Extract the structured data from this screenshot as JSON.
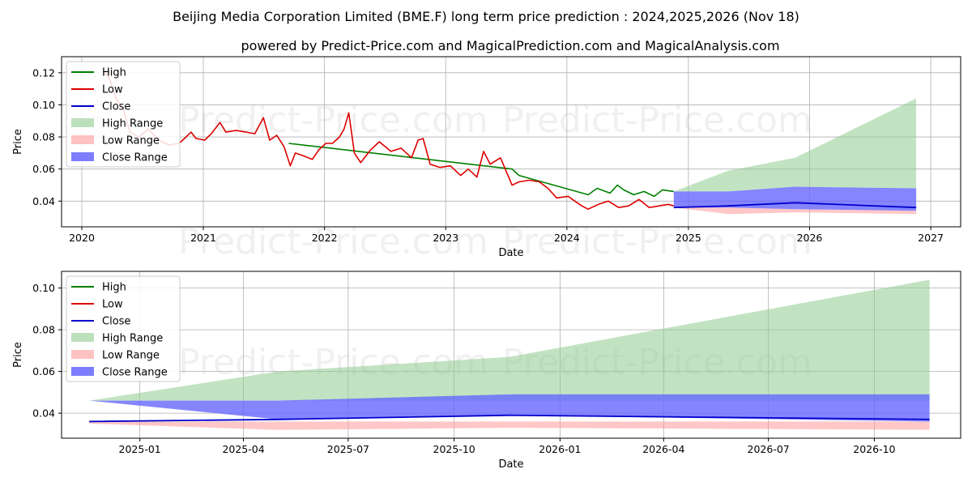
{
  "title": "Beijing Media Corporation Limited (BME.F) long term price prediction : 2024,2025,2026 (Nov 18)",
  "subtitle": "powered by Predict-Price.com and MagicalPrediction.com and MagicalAnalysis.com",
  "watermark": "Predict-Price.com",
  "colors": {
    "high": "#008000",
    "low": "#dd0000",
    "close": "#0000cc",
    "high_range": "#8fcc8f",
    "low_range": "#ff9999",
    "close_range": "#6666ff"
  },
  "legend": {
    "high": "High",
    "low": "Low",
    "close": "Close",
    "high_range": "High Range",
    "low_range": "Low Range",
    "close_range": "Close Range"
  },
  "chart_data": [
    {
      "type": "line",
      "xlabel": "Date",
      "ylabel": "Price",
      "xlim": [
        "2019-11-01",
        "2027-04-01"
      ],
      "ylim": [
        0.024,
        0.13
      ],
      "xticks": [
        "2020",
        "2021",
        "2022",
        "2023",
        "2024",
        "2025",
        "2026",
        "2027"
      ],
      "yticks": [
        "0.04",
        "0.06",
        "0.08",
        "0.10",
        "0.12"
      ],
      "legend_position": "top-left",
      "grid": true,
      "history_low": [
        [
          "2020-03-10",
          0.12
        ],
        [
          "2020-03-25",
          0.116
        ],
        [
          "2020-04-15",
          0.103
        ],
        [
          "2020-05-05",
          0.097
        ],
        [
          "2020-05-25",
          0.083
        ],
        [
          "2020-06-20",
          0.08
        ],
        [
          "2020-07-20",
          0.085
        ],
        [
          "2020-08-20",
          0.078
        ],
        [
          "2020-09-20",
          0.075
        ],
        [
          "2020-10-20",
          0.076
        ],
        [
          "2020-11-10",
          0.08
        ],
        [
          "2020-11-25",
          0.083
        ],
        [
          "2020-12-10",
          0.079
        ],
        [
          "2021-01-05",
          0.078
        ],
        [
          "2021-01-25",
          0.082
        ],
        [
          "2021-02-20",
          0.089
        ],
        [
          "2021-03-10",
          0.083
        ],
        [
          "2021-04-10",
          0.084
        ],
        [
          "2021-05-10",
          0.083
        ],
        [
          "2021-06-05",
          0.082
        ],
        [
          "2021-07-01",
          0.092
        ],
        [
          "2021-07-20",
          0.078
        ],
        [
          "2021-08-10",
          0.081
        ],
        [
          "2021-09-01",
          0.074
        ],
        [
          "2021-09-20",
          0.062
        ],
        [
          "2021-10-05",
          0.07
        ],
        [
          "2021-11-01",
          0.068
        ],
        [
          "2021-11-25",
          0.066
        ],
        [
          "2021-12-15",
          0.072
        ],
        [
          "2022-01-05",
          0.076
        ],
        [
          "2022-01-25",
          0.076
        ],
        [
          "2022-02-15",
          0.08
        ],
        [
          "2022-03-01",
          0.085
        ],
        [
          "2022-03-15",
          0.095
        ],
        [
          "2022-04-01",
          0.07
        ],
        [
          "2022-04-20",
          0.064
        ],
        [
          "2022-05-20",
          0.072
        ],
        [
          "2022-06-15",
          0.077
        ],
        [
          "2022-07-20",
          0.071
        ],
        [
          "2022-08-20",
          0.073
        ],
        [
          "2022-09-20",
          0.067
        ],
        [
          "2022-10-10",
          0.078
        ],
        [
          "2022-10-25",
          0.079
        ],
        [
          "2022-11-15",
          0.063
        ],
        [
          "2022-12-15",
          0.061
        ],
        [
          "2023-01-15",
          0.062
        ],
        [
          "2023-02-15",
          0.056
        ],
        [
          "2023-03-10",
          0.06
        ],
        [
          "2023-04-05",
          0.055
        ],
        [
          "2023-04-25",
          0.071
        ],
        [
          "2023-05-15",
          0.063
        ],
        [
          "2023-06-15",
          0.067
        ],
        [
          "2023-07-20",
          0.05
        ],
        [
          "2023-08-10",
          0.052
        ],
        [
          "2023-09-10",
          0.053
        ],
        [
          "2023-10-10",
          0.052
        ],
        [
          "2023-11-05",
          0.048
        ],
        [
          "2023-12-01",
          0.042
        ],
        [
          "2024-01-05",
          0.043
        ],
        [
          "2024-01-25",
          0.04
        ],
        [
          "2024-02-15",
          0.037
        ],
        [
          "2024-03-05",
          0.035
        ],
        [
          "2024-04-05",
          0.038
        ],
        [
          "2024-05-05",
          0.04
        ],
        [
          "2024-06-05",
          0.036
        ],
        [
          "2024-07-05",
          0.037
        ],
        [
          "2024-08-05",
          0.041
        ],
        [
          "2024-09-05",
          0.036
        ],
        [
          "2024-10-05",
          0.037
        ],
        [
          "2024-11-01",
          0.038
        ],
        [
          "2024-11-18",
          0.037
        ]
      ],
      "history_high": [
        [
          "2021-09-15",
          0.076
        ],
        [
          "2023-07-20",
          0.06
        ],
        [
          "2023-08-10",
          0.056
        ],
        [
          "2024-03-05",
          0.044
        ],
        [
          "2024-04-01",
          0.048
        ],
        [
          "2024-05-10",
          0.045
        ],
        [
          "2024-06-01",
          0.05
        ],
        [
          "2024-06-20",
          0.047
        ],
        [
          "2024-07-20",
          0.044
        ],
        [
          "2024-08-20",
          0.046
        ],
        [
          "2024-09-20",
          0.043
        ],
        [
          "2024-10-15",
          0.047
        ],
        [
          "2024-11-18",
          0.046
        ]
      ],
      "forecast_dates": [
        "2024-11-18",
        "2025-05-01",
        "2025-11-18",
        "2026-11-18"
      ],
      "high_range_upper": [
        0.046,
        0.059,
        0.067,
        0.104
      ],
      "low_range_lower": [
        0.036,
        0.032,
        0.033,
        0.032
      ],
      "close_range_upper": [
        0.046,
        0.046,
        0.049,
        0.048
      ],
      "close_range_lower": [
        0.036,
        0.036,
        0.035,
        0.034
      ],
      "close_forecast": [
        0.036,
        0.037,
        0.039,
        0.036
      ]
    },
    {
      "type": "line",
      "xlabel": "Date",
      "ylabel": "Price",
      "xlim": [
        "2024-10-25",
        "2026-12-15"
      ],
      "ylim": [
        0.028,
        0.108
      ],
      "xticks": [
        "2025-01",
        "2025-04",
        "2025-07",
        "2025-10",
        "2026-01",
        "2026-04",
        "2026-07",
        "2026-10"
      ],
      "yticks": [
        "0.04",
        "0.06",
        "0.08",
        "0.10"
      ],
      "legend_position": "top-left",
      "grid": true,
      "forecast_dates": [
        "2024-11-18",
        "2025-05-01",
        "2025-11-18",
        "2026-11-18"
      ],
      "high_range_upper": [
        0.046,
        0.06,
        0.067,
        0.104
      ],
      "high_range_lower": [
        0.046,
        0.046,
        0.046,
        0.046
      ],
      "low_range_upper": [
        0.036,
        0.036,
        0.036,
        0.036
      ],
      "low_range_lower": [
        0.035,
        0.032,
        0.033,
        0.032
      ],
      "close_range_upper": [
        0.046,
        0.046,
        0.049,
        0.049
      ],
      "close_range_lower": [
        0.046,
        0.037,
        0.039,
        0.036
      ],
      "close_forecast": [
        0.036,
        0.037,
        0.039,
        0.037
      ]
    }
  ]
}
